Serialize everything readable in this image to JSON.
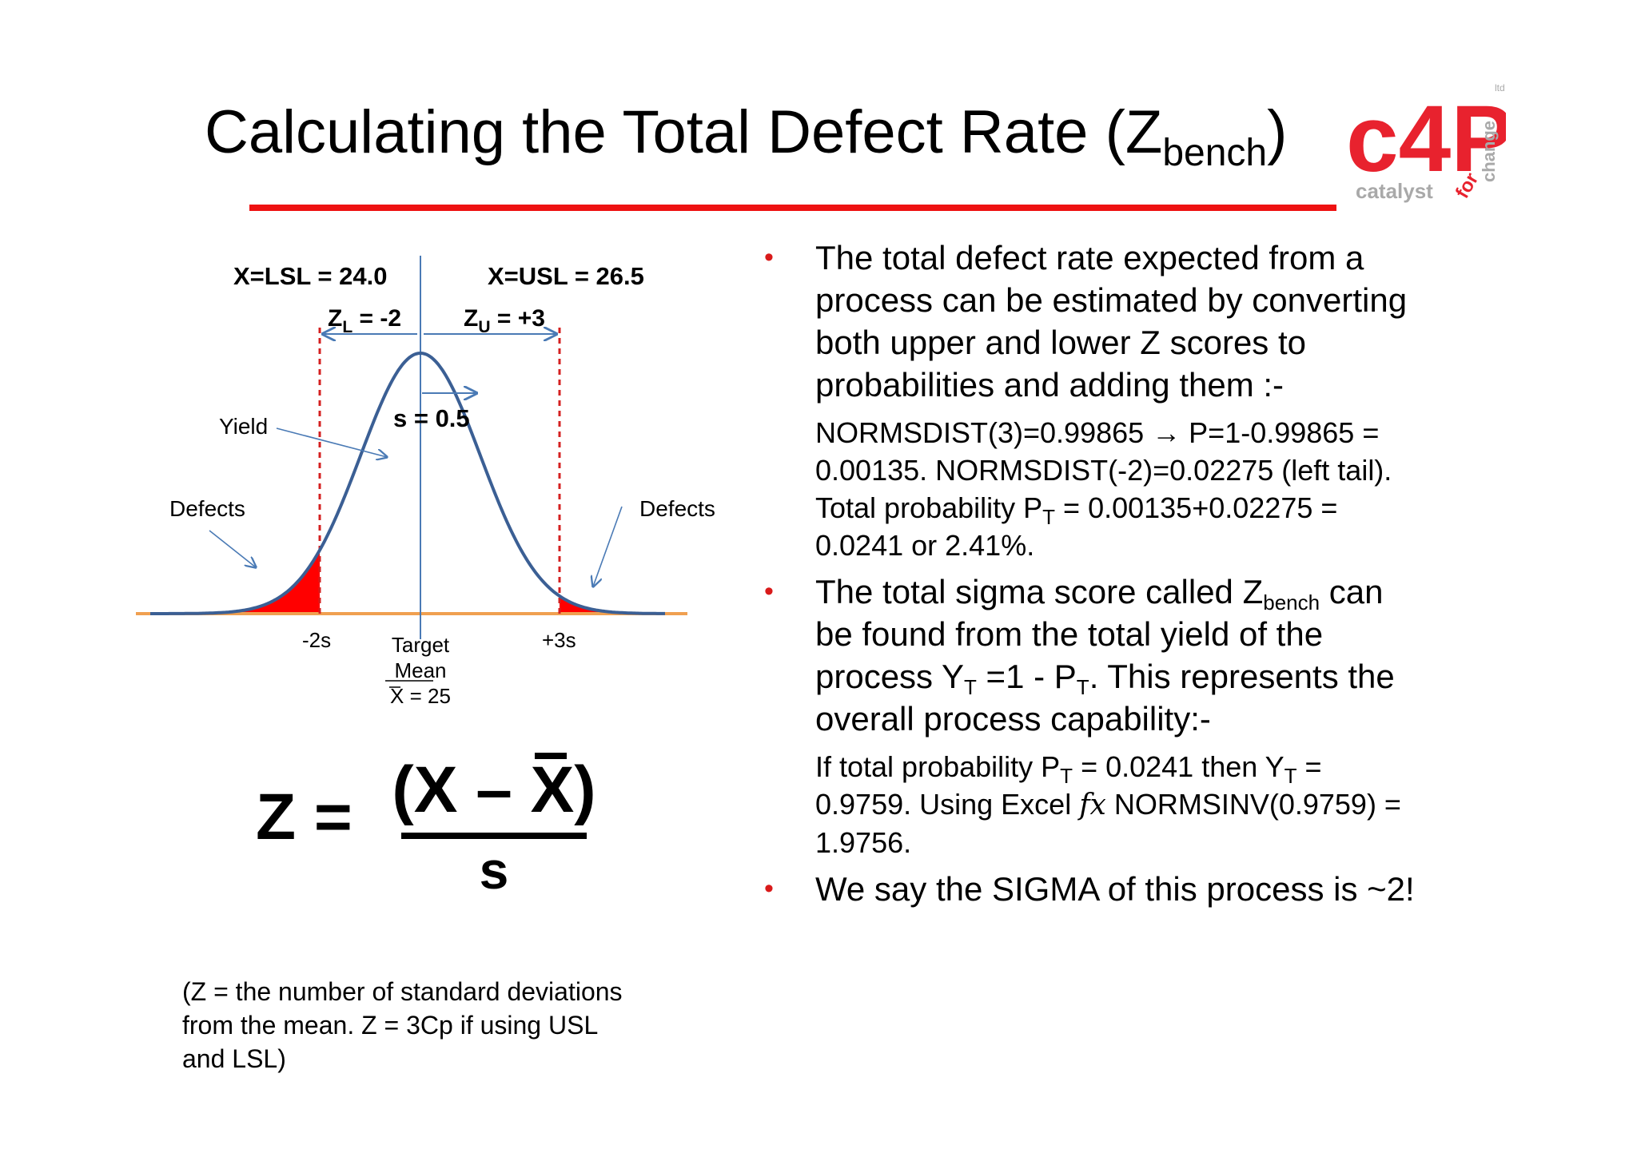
{
  "title": {
    "main": "Calculating the Total Defect Rate (Z",
    "sub": "bench",
    "close": ")"
  },
  "logo": {
    "mark": "c4P",
    "catalyst": "catalyst",
    "for": "for",
    "change": "change",
    "ltd": "ltd"
  },
  "diagram": {
    "lsl_label": "X=LSL = 24.0",
    "usl_label": "X=USL = 26.5",
    "zl_prefix": "Z",
    "zl_sub": "L",
    "zl_value": " = -2",
    "zu_prefix": "Z",
    "zu_sub": "U",
    "zu_value": " = +3",
    "s_label": "s = 0.5",
    "yield_label": "Yield",
    "defects_left": "Defects",
    "defects_right": "Defects",
    "tick_left": "-2s",
    "tick_right": "+3s",
    "target_line1": "Target",
    "target_line2": "Mean",
    "target_line3": "X = 25",
    "colors": {
      "curve": "#3b5f94",
      "defects": "#ff0000",
      "spec_lines": "#d42020",
      "axis": "#f0a050",
      "arrows": "#4a7ab5"
    }
  },
  "formula": {
    "lhs": "Z =",
    "numerator": "(X – X)",
    "denominator": "s"
  },
  "note": {
    "line1": "(Z = the number of standard deviations",
    "line2": "from the mean. Z = 3Cp if using USL",
    "line3": "and LSL)"
  },
  "bullets": {
    "b1": {
      "line1": "The total defect rate expected from a",
      "line2": "process can be estimated by converting",
      "line3": "both upper and lower Z scores to",
      "line4": "probabilities and adding them :-",
      "sub_line1": "NORMSDIST(3)=0.99865 → P=1-0.99865 =",
      "sub_line2": "0.00135. NORMSDIST(-2)=0.02275 (left tail).",
      "sub_line3_a": "Total probability P",
      "sub_line3_sub": "T",
      "sub_line3_b": " = 0.00135+0.02275 =",
      "sub_line4": "0.0241 or 2.41%."
    },
    "b2": {
      "line1_a": "The total sigma score called Z",
      "line1_sub": "bench",
      "line1_b": " can",
      "line2": "be found from the total yield of the",
      "line3_a": "process Y",
      "line3_sub1": "T",
      "line3_b": " =1 - P",
      "line3_sub2": "T",
      "line3_c": ". This represents the",
      "line4": "overall process capability:-",
      "sub_line1_a": "If total probability P",
      "sub_line1_sub": "T",
      "sub_line1_b": " = 0.0241 then Y",
      "sub_line1_sub2": "T",
      "sub_line1_c": " =",
      "sub_line2_a": "0.9759. Using Excel ",
      "sub_line2_fx": "fx",
      "sub_line2_b": " NORMSINV(0.9759) =",
      "sub_line3": "1.9756."
    },
    "b3": {
      "line1": "We say the SIGMA of this process is ~2!"
    },
    "bullet_char": "•"
  }
}
